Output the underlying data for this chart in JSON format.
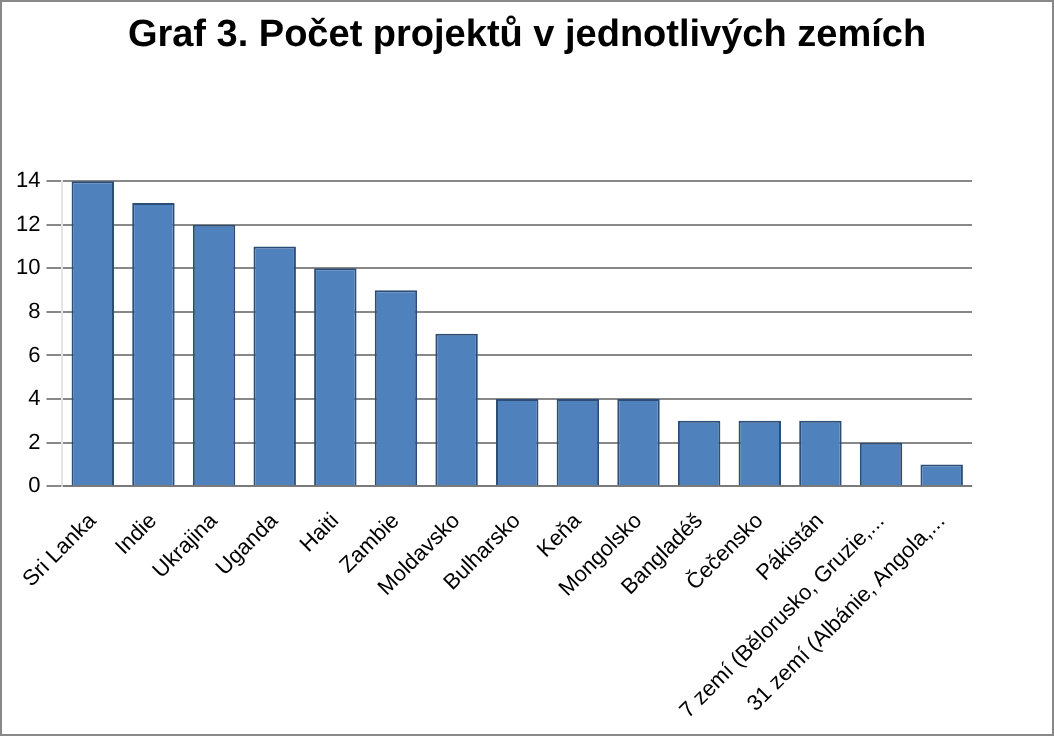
{
  "chart_data": {
    "type": "bar",
    "title": "Graf 3. Počet projektů v jednotlivých zemích",
    "categories": [
      "Sri Lanka",
      "Indie",
      "Ukrajina",
      "Uganda",
      "Haiti",
      "Zambie",
      "Moldavsko",
      "Bulharsko",
      "Keňa",
      "Mongolsko",
      "Bangladéš",
      "Čečensko",
      "Pákistán",
      "7 zemí (Bělorusko, Gruzie,...",
      "31 zemí (Albánie, Angola,..."
    ],
    "values": [
      14,
      13,
      12,
      11,
      10,
      9,
      7,
      4,
      4,
      4,
      3,
      3,
      3,
      2,
      1
    ],
    "color": "#4f81bd",
    "ylim": [
      0,
      14
    ],
    "yticks": [
      0,
      2,
      4,
      6,
      8,
      10,
      12,
      14
    ],
    "grid": "y",
    "legend": false
  }
}
